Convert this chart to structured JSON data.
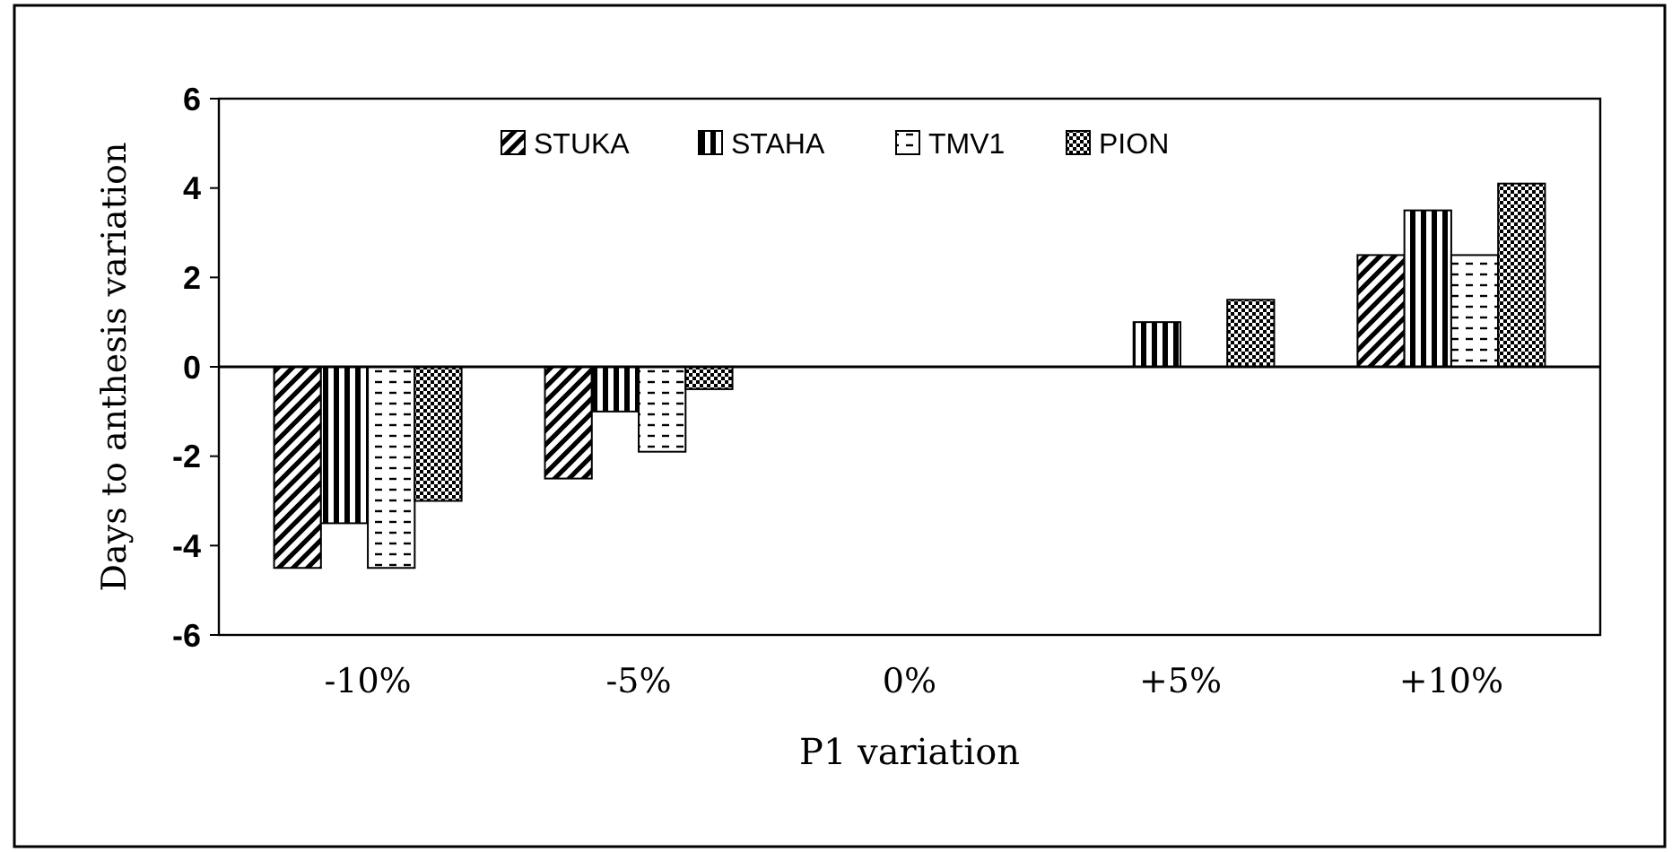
{
  "chart_data": {
    "type": "bar",
    "xlabel": "P1 variation",
    "ylabel": "Days to anthesis variation",
    "categories": [
      "-10%",
      "-5%",
      "0%",
      "+5%",
      "+10%"
    ],
    "series": [
      {
        "name": "STUKA",
        "color": "#000000",
        "values": [
          -4.5,
          -2.5,
          0,
          0,
          2.5
        ]
      },
      {
        "name": "STAHA",
        "color": "#000000",
        "values": [
          -3.5,
          -1,
          0,
          1,
          3.5
        ]
      },
      {
        "name": "TMV1",
        "color": "#000000",
        "values": [
          -4.5,
          -1.9,
          0,
          0,
          2.5
        ]
      },
      {
        "name": "PION",
        "color": "#000000",
        "values": [
          -3,
          -0.5,
          0,
          1.5,
          4.1
        ]
      }
    ],
    "ylim": [
      -6,
      6
    ],
    "yticks": [
      -6,
      -4,
      -2,
      0,
      2,
      4,
      6
    ],
    "legend": "top"
  }
}
